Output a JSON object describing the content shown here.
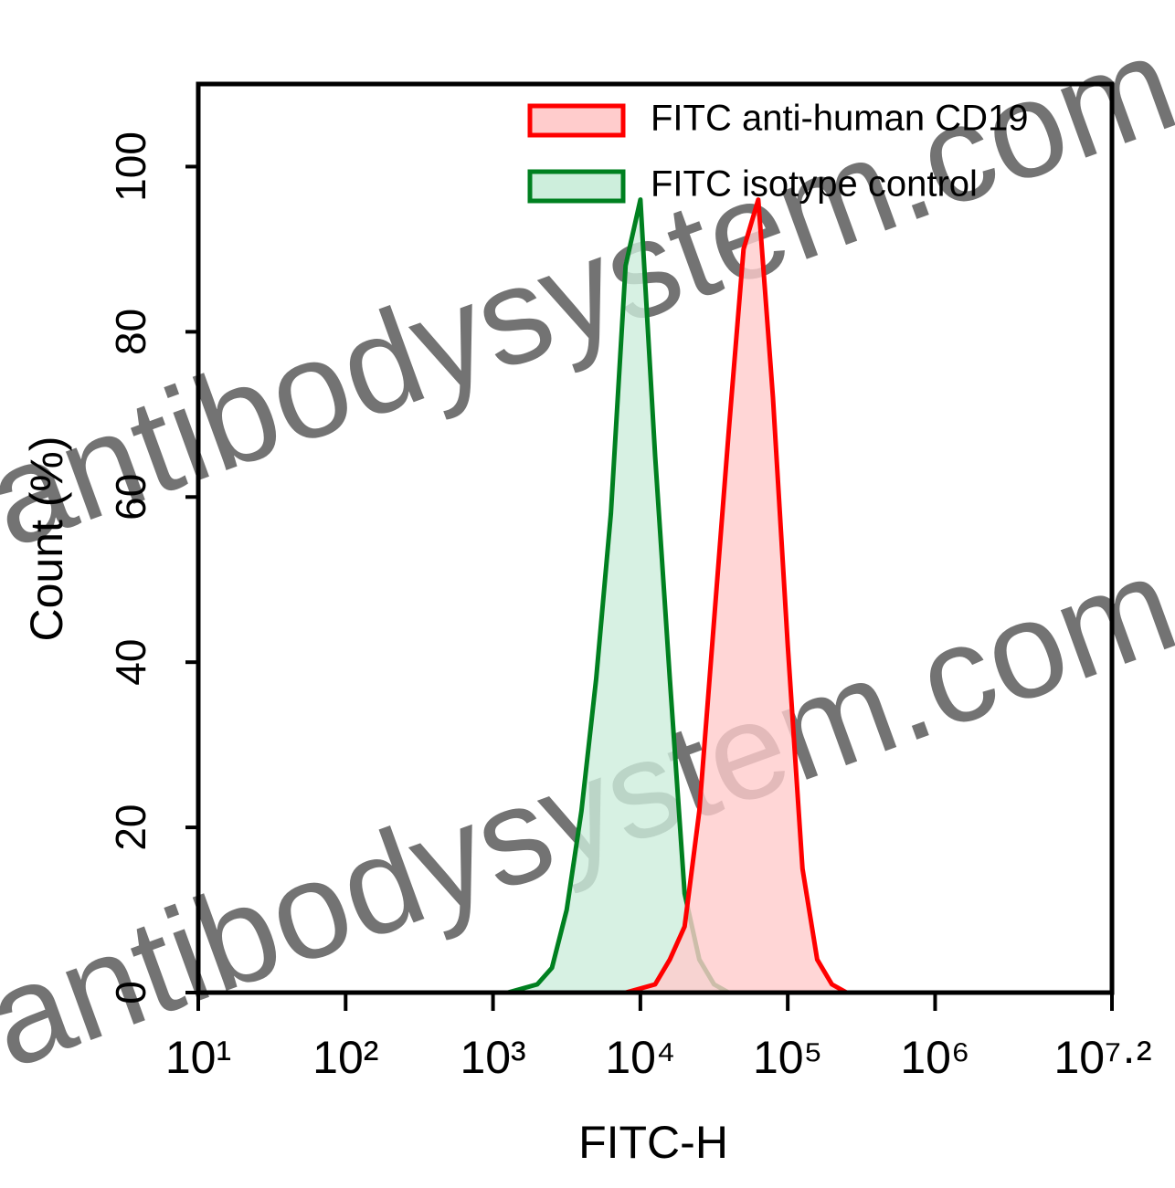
{
  "chart_data": {
    "type": "area",
    "x_label": "FITC-H",
    "y_label": "Count (%)",
    "xscale": "log",
    "x": [
      1259,
      1585,
      1995,
      2512,
      3162,
      3981,
      5012,
      6310,
      7943,
      10000,
      12589,
      15849,
      19953,
      25119,
      31623,
      39811,
      50119,
      63096,
      79433,
      100000,
      125893,
      158489,
      199526,
      251189,
      316228
    ],
    "series": [
      {
        "name": "FITC anti-human CD19",
        "color": "#ff0000",
        "fill_color": "#ffcccc",
        "values": [
          0,
          0,
          0,
          0,
          0,
          0,
          0,
          0,
          0,
          0.5,
          1,
          4,
          8,
          22,
          45,
          68,
          90,
          96,
          72,
          42,
          15,
          4,
          1,
          0,
          0
        ]
      },
      {
        "name": "FITC isotype control",
        "color": "#008020",
        "fill_color": "#cdeedc",
        "values": [
          0,
          0.5,
          1,
          3,
          10,
          22,
          38,
          58,
          88,
          96,
          65,
          38,
          12,
          4,
          1,
          0,
          0,
          0,
          0,
          0,
          0,
          0,
          0,
          0,
          0
        ]
      }
    ],
    "xlim": [
      10,
      15848932
    ],
    "xticks": [
      {
        "value": 10,
        "label": "10¹"
      },
      {
        "value": 100,
        "label": "10²"
      },
      {
        "value": 1000,
        "label": "10³"
      },
      {
        "value": 10000,
        "label": "10⁴"
      },
      {
        "value": 100000,
        "label": "10⁵"
      },
      {
        "value": 1000000,
        "label": "10⁶"
      },
      {
        "value": 15848932,
        "label": "10⁷·²"
      }
    ],
    "ylim": [
      0,
      110
    ],
    "yticks": [
      0,
      20,
      40,
      60,
      80,
      100
    ],
    "legend": "top-right",
    "watermarks": [
      "antibodysystem.com",
      "antibodysystem.com"
    ]
  }
}
